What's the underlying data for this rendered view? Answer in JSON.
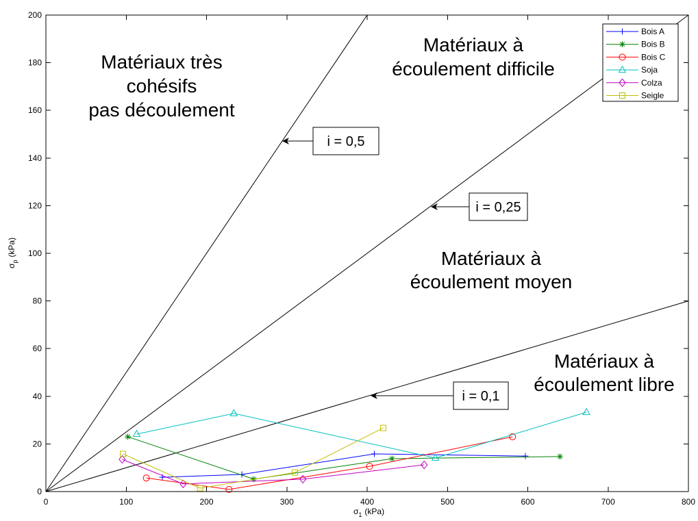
{
  "chart_data": {
    "type": "line",
    "xlabel": {
      "symbol": "σ",
      "sub": "1",
      "unit": "(kPa)"
    },
    "ylabel": {
      "symbol": "σ",
      "sub": "p",
      "unit": "(kPa)"
    },
    "xlim": [
      0,
      800
    ],
    "ylim": [
      0,
      200
    ],
    "xticks": [
      0,
      100,
      200,
      300,
      400,
      500,
      600,
      700,
      800
    ],
    "yticks": [
      0,
      20,
      40,
      60,
      80,
      100,
      120,
      140,
      160,
      180,
      200
    ],
    "grid": false,
    "legend_position": "top-right",
    "series": [
      {
        "name": "Bois A",
        "color": "#0000FF",
        "marker": "plus",
        "x": [
          145,
          244,
          409,
          597
        ],
        "y": [
          6.0,
          7.2,
          15.8,
          14.9
        ]
      },
      {
        "name": "Bois B",
        "color": "#008000",
        "marker": "star",
        "x": [
          102,
          259,
          431,
          640
        ],
        "y": [
          23.0,
          5.2,
          13.8,
          14.7
        ]
      },
      {
        "name": "Bois C",
        "color": "#FF0000",
        "marker": "circle",
        "x": [
          125,
          228,
          403,
          581
        ],
        "y": [
          5.7,
          0.9,
          10.6,
          23.0
        ]
      },
      {
        "name": "Soja",
        "color": "#00BFBF",
        "marker": "triangle",
        "x": [
          113,
          234,
          485,
          673
        ],
        "y": [
          24.1,
          32.8,
          14.1,
          33.3
        ]
      },
      {
        "name": "Colza",
        "color": "#BF00BF",
        "marker": "diamond",
        "x": [
          95,
          171,
          320,
          471
        ],
        "y": [
          13.5,
          3.2,
          5.2,
          11.2
        ]
      },
      {
        "name": "Seigle",
        "color": "#BFBF00",
        "marker": "square",
        "x": [
          96,
          192,
          310,
          420
        ],
        "y": [
          15.8,
          1.4,
          8.0,
          26.7
        ]
      }
    ],
    "reference_lines": [
      {
        "label": "i = 0,5",
        "slope": 0.5
      },
      {
        "label": "i = 0,25",
        "slope": 0.25
      },
      {
        "label": "i = 0,1",
        "slope": 0.1
      }
    ],
    "region_labels": [
      {
        "lines": [
          "Matériaux très",
          "cohésifs",
          "pas découlement"
        ]
      },
      {
        "lines": [
          "Matériaux à",
          "écoulement difficile"
        ]
      },
      {
        "lines": [
          "Matériaux à",
          "écoulement moyen"
        ]
      },
      {
        "lines": [
          "Matériaux à",
          "écoulement libre"
        ]
      }
    ]
  }
}
